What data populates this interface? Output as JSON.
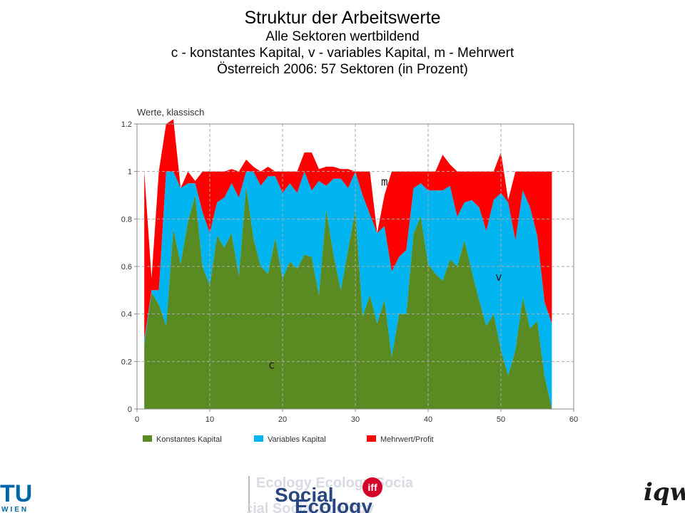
{
  "titles": {
    "title": "Struktur der Arbeitswerte",
    "line1": "Alle Sektoren wertbildend",
    "line2": "c - konstantes Kapital, v - variables Kapital, m - Mehrwert",
    "line3": "Österreich 2006: 57 Sektoren (in Prozent)"
  },
  "chart_data": {
    "type": "area",
    "stacked": true,
    "title": "Werte, klassisch",
    "xlim": [
      0,
      60
    ],
    "ylim": [
      0,
      1.2
    ],
    "x_ticks": [
      "0",
      "10",
      "20",
      "30",
      "40",
      "50",
      "60"
    ],
    "y_ticks": [
      "0",
      "0.2",
      "0.4",
      "0.6",
      "0.8",
      "1",
      "1.2"
    ],
    "grid": true,
    "legend_position": "bottom",
    "x": [
      1,
      2,
      3,
      4,
      5,
      6,
      7,
      8,
      9,
      10,
      11,
      12,
      13,
      14,
      15,
      16,
      17,
      18,
      19,
      20,
      21,
      22,
      23,
      24,
      25,
      26,
      27,
      28,
      29,
      30,
      31,
      32,
      33,
      34,
      35,
      36,
      37,
      38,
      39,
      40,
      41,
      42,
      43,
      44,
      45,
      46,
      47,
      48,
      49,
      50,
      51,
      52,
      53,
      54,
      55,
      56,
      57
    ],
    "series": [
      {
        "name": "Konstantes Kapital",
        "color": "#5a8a22",
        "values": [
          0.27,
          0.49,
          0.44,
          0.35,
          0.76,
          0.61,
          0.79,
          0.9,
          0.6,
          0.52,
          0.73,
          0.68,
          0.74,
          0.56,
          0.94,
          0.72,
          0.6,
          0.57,
          0.72,
          0.55,
          0.62,
          0.59,
          0.65,
          0.64,
          0.48,
          0.84,
          0.65,
          0.5,
          0.67,
          0.84,
          0.39,
          0.48,
          0.36,
          0.46,
          0.22,
          0.4,
          0.4,
          0.74,
          0.81,
          0.61,
          0.57,
          0.54,
          0.63,
          0.6,
          0.71,
          0.58,
          0.46,
          0.35,
          0.4,
          0.25,
          0.14,
          0.25,
          0.47,
          0.34,
          0.37,
          0.14,
          0.0
        ]
      },
      {
        "name": "Variables Kapital",
        "color": "#00b4f0",
        "values": [
          0.02,
          0.01,
          0.06,
          0.65,
          0.24,
          0.32,
          0.16,
          0.05,
          0.23,
          0.22,
          0.14,
          0.21,
          0.21,
          0.33,
          0.06,
          0.28,
          0.34,
          0.41,
          0.26,
          0.36,
          0.33,
          0.32,
          0.35,
          0.28,
          0.48,
          0.1,
          0.32,
          0.47,
          0.26,
          0.16,
          0.51,
          0.34,
          0.38,
          0.31,
          0.36,
          0.24,
          0.27,
          0.19,
          0.14,
          0.31,
          0.35,
          0.38,
          0.31,
          0.21,
          0.16,
          0.3,
          0.39,
          0.4,
          0.48,
          0.66,
          0.73,
          0.46,
          0.45,
          0.51,
          0.36,
          0.31,
          0.36
        ]
      },
      {
        "name": "Mehrwert/Profit",
        "color": "#ff0000",
        "values": [
          0.71,
          0.05,
          0.5,
          0.2,
          0.22,
          0.0,
          0.05,
          0.01,
          0.17,
          0.26,
          0.13,
          0.11,
          0.06,
          0.11,
          0.05,
          0.02,
          0.06,
          0.04,
          0.02,
          0.09,
          0.05,
          0.09,
          0.08,
          0.16,
          0.05,
          0.08,
          0.05,
          0.04,
          0.08,
          0.0,
          0.1,
          0.18,
          0.0,
          0.13,
          0.42,
          0.36,
          0.33,
          0.07,
          0.05,
          0.08,
          0.08,
          0.15,
          0.09,
          0.19,
          0.13,
          0.12,
          0.15,
          0.25,
          0.12,
          0.17,
          0.01,
          0.29,
          0.08,
          0.15,
          0.27,
          0.55,
          0.64
        ]
      }
    ],
    "annotations": [
      {
        "text": "m",
        "x": 34,
        "y": 0.94
      },
      {
        "text": "v",
        "x": 49.7,
        "y": 0.54
      },
      {
        "text": "c",
        "x": 18.5,
        "y": 0.17
      }
    ]
  },
  "footer": {
    "tu_logo": "TU",
    "tu_wien": "WIEN",
    "iff_logo_text": "iff",
    "social_text": "Social",
    "ecology_text": "Ecology",
    "iqw_logo": "iqw"
  }
}
